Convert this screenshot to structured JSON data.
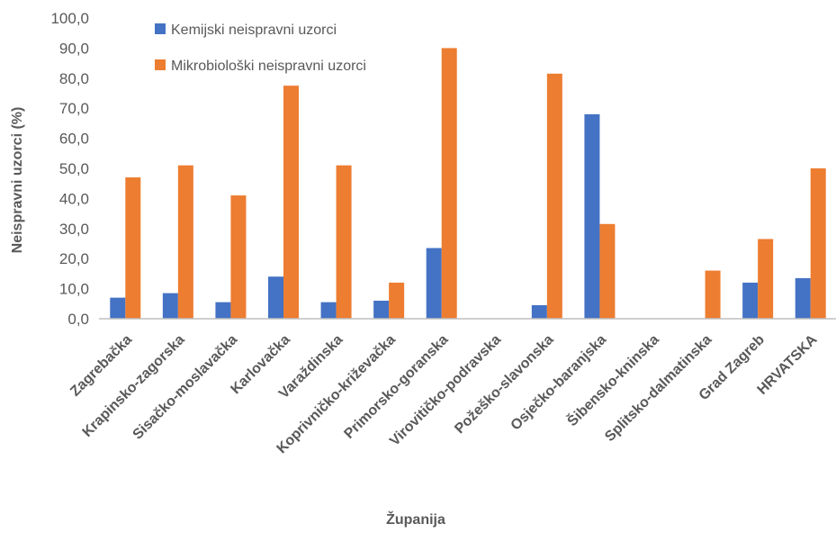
{
  "chart_data": {
    "type": "bar",
    "title": "",
    "xlabel": "Županija",
    "ylabel": "Neispravni uzorci (%)",
    "ylim": [
      0,
      100
    ],
    "yticks": [
      "0,0",
      "10,0",
      "20,0",
      "30,0",
      "40,0",
      "50,0",
      "60,0",
      "70,0",
      "80,0",
      "90,0",
      "100,0"
    ],
    "grid": false,
    "legend_position": "top-left",
    "categories": [
      "Zagrebačka",
      "Krapinsko-zagorska",
      "Sisačko-moslavačka",
      "Karlovačka",
      "Varaždinska",
      "Koprivničko-križevačka",
      "Primorsko-goranska",
      "Virovitičko-podravska",
      "Požeško-slavonska",
      "Osječko-baranjska",
      "Šibensko-kninska",
      "Splitsko-dalmatinska",
      "Grad Zagreb",
      "HRVATSKA"
    ],
    "series": [
      {
        "name": "Kemijski neispravni uzorci",
        "color": "#4472C4",
        "values": [
          7.0,
          8.5,
          5.5,
          14.0,
          5.5,
          6.0,
          23.5,
          0,
          4.5,
          68.0,
          0,
          0,
          12.0,
          13.5
        ]
      },
      {
        "name": "Mikrobiološki neispravni uzorci",
        "color": "#ED7D31",
        "values": [
          47.0,
          51.0,
          41.0,
          77.5,
          51.0,
          12.0,
          90.0,
          0,
          81.5,
          31.5,
          0,
          16.0,
          26.5,
          50.0
        ]
      }
    ]
  }
}
